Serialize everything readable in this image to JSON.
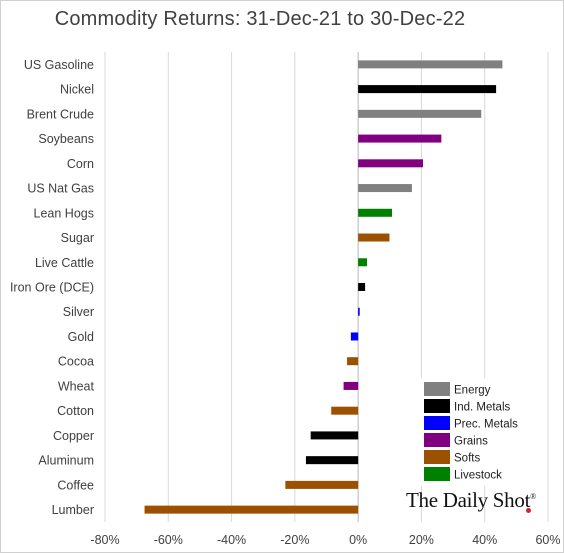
{
  "chart_data": {
    "type": "bar",
    "orientation": "horizontal",
    "title": "Commodity Returns: 31-Dec-21 to 30-Dec-22",
    "categories": [
      "US Gasoline",
      "Nickel",
      "Brent Crude",
      "Soybeans",
      "Corn",
      "US Nat Gas",
      "Lean Hogs",
      "Sugar",
      "Live Cattle",
      "Iron Ore (DCE)",
      "Silver",
      "Gold",
      "Cocoa",
      "Wheat",
      "Cotton",
      "Copper",
      "Aluminum",
      "Coffee",
      "Lumber"
    ],
    "values": [
      45.6,
      43.6,
      38.9,
      26.3,
      20.5,
      17.0,
      10.7,
      9.9,
      2.8,
      2.2,
      0.5,
      -2.3,
      -3.5,
      -4.6,
      -8.5,
      -15.0,
      -16.5,
      -23.0,
      -67.5
    ],
    "groups": [
      "Energy",
      "Ind. Metals",
      "Energy",
      "Grains",
      "Grains",
      "Energy",
      "Livestock",
      "Softs",
      "Livestock",
      "Ind. Metals",
      "Prec. Metals",
      "Prec. Metals",
      "Softs",
      "Grains",
      "Softs",
      "Ind. Metals",
      "Ind. Metals",
      "Softs",
      "Softs"
    ],
    "xlim": [
      -80,
      60
    ],
    "ticks": [
      -80,
      -60,
      -40,
      -20,
      0,
      20,
      40,
      60
    ],
    "tick_labels": [
      "-80%",
      "-60%",
      "-40%",
      "-20%",
      "0%",
      "20%",
      "40%",
      "60%"
    ],
    "grid": true,
    "legend_position": "bottom-right",
    "legend": [
      {
        "name": "Energy",
        "color": "#808080"
      },
      {
        "name": "Ind. Metals",
        "color": "#000000"
      },
      {
        "name": "Prec. Metals",
        "color": "#0000ff"
      },
      {
        "name": "Grains",
        "color": "#800080"
      },
      {
        "name": "Softs",
        "color": "#9c5100"
      },
      {
        "name": "Livestock",
        "color": "#008000"
      }
    ]
  },
  "brand": {
    "name": "The Daily Shot",
    "mark": "®"
  }
}
